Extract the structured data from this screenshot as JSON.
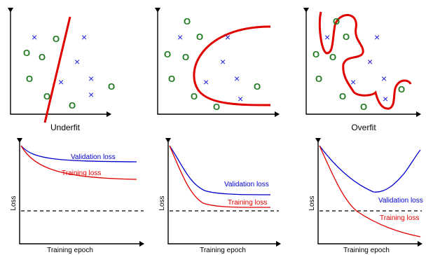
{
  "scatter": {
    "panels": [
      {
        "caption": "Underfit"
      },
      {
        "caption": ""
      },
      {
        "caption": "Overfit"
      }
    ],
    "o_mark": "O",
    "x_mark": "×"
  },
  "loss": {
    "xlabel": "Training epoch",
    "ylabel": "Loss",
    "validation_label": "Validation loss",
    "training_label": "Training loss",
    "colors": {
      "validation": "#0000cc",
      "training": "#e00000"
    }
  }
}
